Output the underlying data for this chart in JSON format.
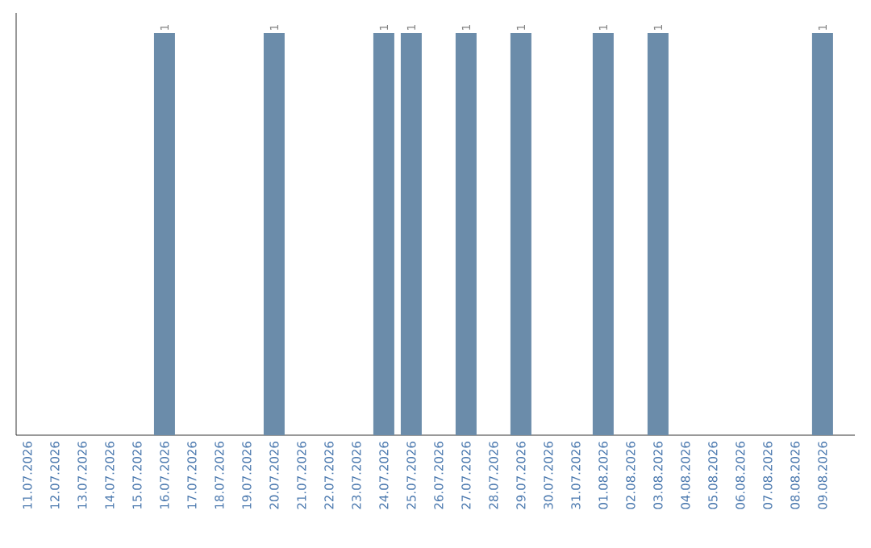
{
  "chart_data": {
    "type": "bar",
    "categories": [
      "11.07.2026",
      "12.07.2026",
      "13.07.2026",
      "14.07.2026",
      "15.07.2026",
      "16.07.2026",
      "17.07.2026",
      "18.07.2026",
      "19.07.2026",
      "20.07.2026",
      "21.07.2026",
      "22.07.2026",
      "23.07.2026",
      "24.07.2026",
      "25.07.2026",
      "26.07.2026",
      "27.07.2026",
      "28.07.2026",
      "29.07.2026",
      "30.07.2026",
      "31.07.2026",
      "01.08.2026",
      "02.08.2026",
      "03.08.2026",
      "04.08.2026",
      "05.08.2026",
      "06.08.2026",
      "07.08.2026",
      "08.08.2026",
      "09.08.2026"
    ],
    "values": [
      0,
      0,
      0,
      0,
      0,
      1,
      0,
      0,
      0,
      1,
      0,
      0,
      0,
      1,
      1,
      0,
      1,
      0,
      1,
      0,
      0,
      1,
      0,
      1,
      0,
      0,
      0,
      0,
      0,
      1
    ],
    "value_labels": [
      null,
      null,
      null,
      null,
      null,
      "1",
      null,
      null,
      null,
      "1",
      null,
      null,
      null,
      "1",
      "1",
      null,
      "1",
      null,
      "1",
      null,
      null,
      "1",
      null,
      "1",
      null,
      null,
      null,
      null,
      null,
      "1"
    ],
    "color": "#6b8caa",
    "tick_labels": "x"
  }
}
